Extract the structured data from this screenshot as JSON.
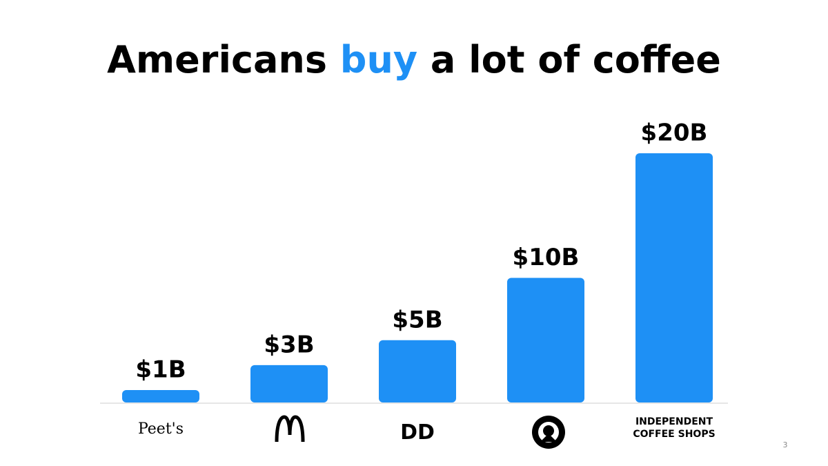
{
  "chart_data": {
    "type": "bar",
    "title_segments": [
      {
        "text": "Americans ",
        "color": "#000000"
      },
      {
        "text": "buy",
        "color": "#1e90f5"
      },
      {
        "text": " a lot of coffee",
        "color": "#000000"
      }
    ],
    "categories": [
      "Peet's",
      null,
      "DD",
      null,
      "INDEPENDENT COFFEE SHOPS"
    ],
    "values": [
      1,
      3,
      5,
      10,
      20
    ],
    "value_labels": [
      "$1B",
      "$3B",
      "$5B",
      "$10B",
      "$20B"
    ],
    "color": "#1e90f5",
    "ylim": [
      0,
      20
    ],
    "grid": false
  },
  "page_number": "3"
}
